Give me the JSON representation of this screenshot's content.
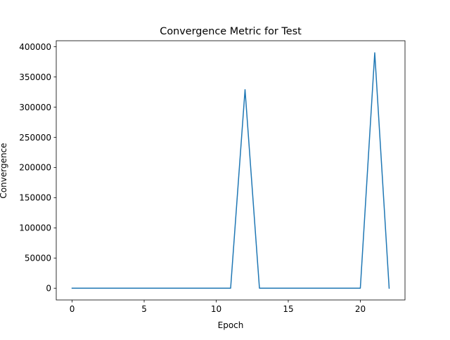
{
  "chart_data": {
    "type": "line",
    "title": "Convergence Metric for Test",
    "xlabel": "Epoch",
    "ylabel": "Convergence",
    "xlim": [
      -1.1,
      23.1
    ],
    "ylim": [
      -19500,
      410000
    ],
    "xticks": [
      0,
      5,
      10,
      15,
      20
    ],
    "yticks": [
      0,
      50000,
      100000,
      150000,
      200000,
      250000,
      300000,
      350000,
      400000
    ],
    "grid": false,
    "legend": "none",
    "series": [
      {
        "color": "#1f77b4",
        "x": [
          0,
          1,
          2,
          3,
          4,
          5,
          6,
          7,
          8,
          9,
          10,
          11,
          12,
          13,
          14,
          15,
          16,
          17,
          18,
          19,
          20,
          21,
          22
        ],
        "y": [
          0,
          0,
          0,
          0,
          0,
          0,
          0,
          0,
          0,
          0,
          0,
          0,
          329000,
          0,
          0,
          0,
          0,
          0,
          0,
          0,
          0,
          390000,
          0
        ]
      }
    ]
  }
}
